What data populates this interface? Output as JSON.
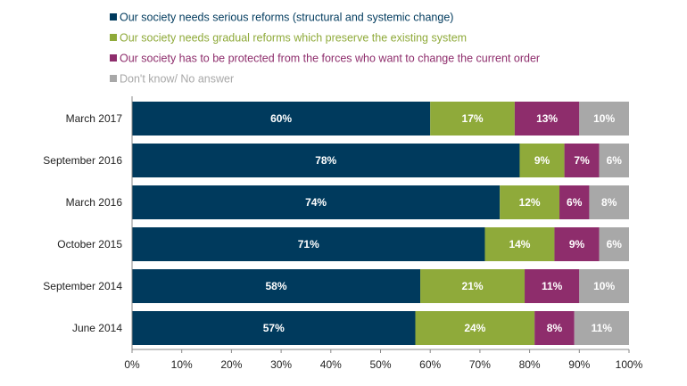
{
  "chart_data": {
    "type": "bar",
    "orientation": "horizontal",
    "stacked": true,
    "categories": [
      "March 2017",
      "September 2016",
      "March 2016",
      "October 2015",
      "September 2014",
      "June 2014"
    ],
    "series": [
      {
        "name": "Our society needs serious reforms (structural and systemic change)",
        "color": "#003a5d",
        "values": [
          60,
          78,
          74,
          71,
          58,
          57
        ]
      },
      {
        "name": "Our society needs gradual reforms which preserve the existing system",
        "color": "#8faa3a",
        "values": [
          17,
          9,
          12,
          14,
          21,
          24
        ]
      },
      {
        "name": "Our society has to be protected from the forces who want to change the current order",
        "color": "#8e2d6c",
        "values": [
          13,
          7,
          6,
          9,
          11,
          8
        ]
      },
      {
        "name": "Don't know/ No answer",
        "color": "#a8a8a8",
        "values": [
          10,
          6,
          8,
          6,
          10,
          11
        ]
      }
    ],
    "xlim": [
      0,
      100
    ],
    "xticks": [
      "0%",
      "10%",
      "20%",
      "30%",
      "40%",
      "50%",
      "60%",
      "70%",
      "80%",
      "90%",
      "100%"
    ],
    "value_suffix": "%",
    "legend_position": "top",
    "grid": false
  }
}
